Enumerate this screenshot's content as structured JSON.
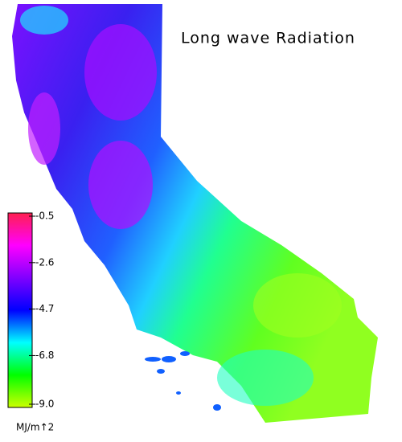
{
  "map": {
    "title": "Long wave Radiation",
    "colorbar": {
      "lim": [
        -9,
        -0.5
      ],
      "ticks": [
        -0.5,
        -2.6,
        -4.7,
        -6.8,
        {
          "value": -9,
          "label": "-9.0"
        }
      ],
      "colors": [
        "#ff2050",
        "#ff00ff",
        "#8000ff",
        "#0000ff",
        "#00ffff",
        "#00ff00",
        "#ccff00"
      ],
      "unit": "MJ/m↑2"
    }
  }
}
